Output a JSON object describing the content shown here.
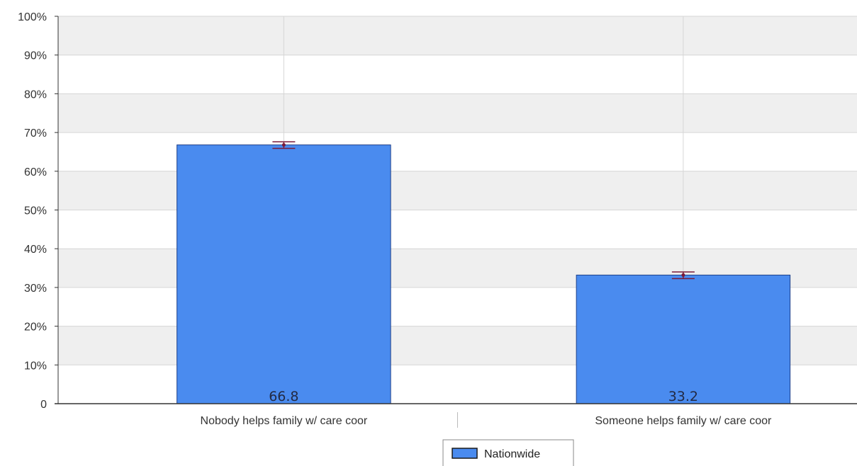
{
  "chart_data": {
    "type": "bar",
    "categories": [
      "Nobody helps family w/ care coor",
      "Someone helps family w/ care coor"
    ],
    "series": [
      {
        "name": "Nationwide",
        "values": [
          66.8,
          33.2
        ],
        "error_low": [
          65.9,
          32.3
        ],
        "error_high": [
          67.6,
          34.0
        ],
        "color": "#4a8bef",
        "border_color": "#1d3f8a",
        "error_color": "#7a1a3a"
      }
    ],
    "data_labels": [
      "66.8",
      "33.2"
    ],
    "ylim": [
      0,
      100
    ],
    "yticks": [
      0,
      10,
      20,
      30,
      40,
      50,
      60,
      70,
      80,
      90,
      100
    ],
    "ytick_labels": [
      "0",
      "10%",
      "20%",
      "30%",
      "40%",
      "50%",
      "60%",
      "70%",
      "80%",
      "90%",
      "100%"
    ],
    "grid": true,
    "band_color": "#efefef",
    "grid_color": "#d6d6d6",
    "legend": {
      "placement": "bottom-center",
      "entries": [
        "Nationwide"
      ]
    },
    "title": "",
    "xlabel": "",
    "ylabel": ""
  }
}
